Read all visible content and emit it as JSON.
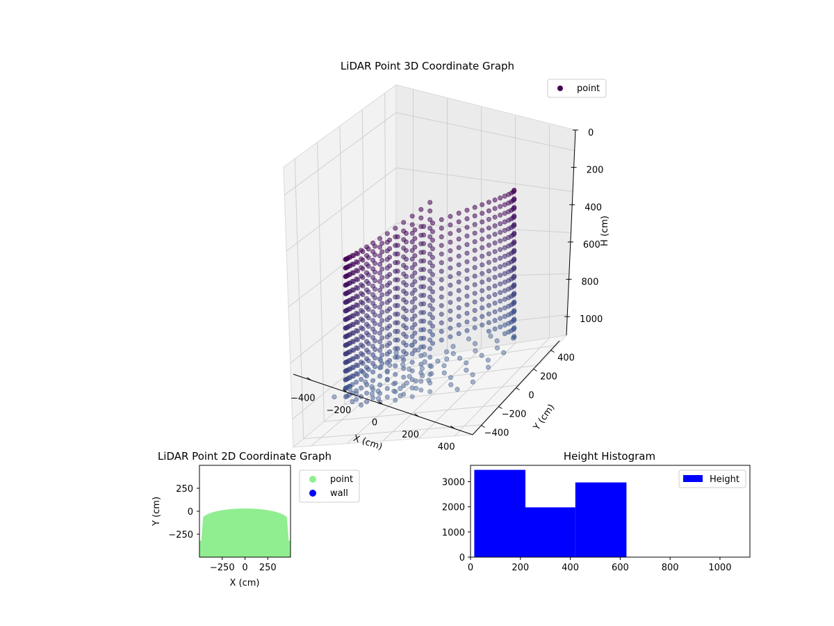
{
  "chart_data": [
    {
      "type": "scatter3d",
      "title": "LiDAR Point 3D Coordinate Graph",
      "xlabel": "X (cm)",
      "ylabel": "Y (cm)",
      "zlabel": "H (cm)",
      "x_ticks": [
        "−400",
        "−200",
        "0",
        "200",
        "400"
      ],
      "y_ticks": [
        "−400",
        "−200",
        "0",
        "200",
        "400"
      ],
      "z_ticks": [
        "0",
        "200",
        "400",
        "600",
        "800",
        "1000"
      ],
      "xlim": [
        -500,
        500
      ],
      "ylim": [
        -500,
        500
      ],
      "zlim": [
        0,
        1100
      ],
      "z_inverted": true,
      "legend": [
        {
          "name": "point",
          "color": "#440154"
        }
      ],
      "legend_position": "top-right",
      "colormap": "viridis",
      "grid": true
    },
    {
      "type": "scatter",
      "title": "LiDAR Point 2D Coordinate Graph",
      "xlabel": "X (cm)",
      "ylabel": "Y (cm)",
      "x_ticks": [
        "−250",
        "0",
        "250"
      ],
      "y_ticks": [
        "250",
        "0",
        "−250"
      ],
      "xlim": [
        -500,
        500
      ],
      "ylim": [
        -500,
        500
      ],
      "series": [
        {
          "name": "point",
          "color": "#90ee90"
        },
        {
          "name": "wall",
          "color": "#0000ff"
        }
      ],
      "legend_position": "outside-right"
    },
    {
      "type": "bar",
      "title": "Height Histogram",
      "x_ticks": [
        "0",
        "200",
        "400",
        "600",
        "800",
        "1000"
      ],
      "y_ticks": [
        "0",
        "1000",
        "2000",
        "3000"
      ],
      "xlim": [
        0,
        1120
      ],
      "ylim": [
        0,
        3650
      ],
      "bins": [
        {
          "from": 15,
          "to": 220,
          "count": 3470
        },
        {
          "from": 220,
          "to": 420,
          "count": 1980
        },
        {
          "from": 420,
          "to": 625,
          "count": 2970
        }
      ],
      "bar_color": "#0000ff",
      "legend": [
        {
          "name": "Height",
          "color": "#0000ff"
        }
      ],
      "legend_position": "top-right"
    }
  ]
}
